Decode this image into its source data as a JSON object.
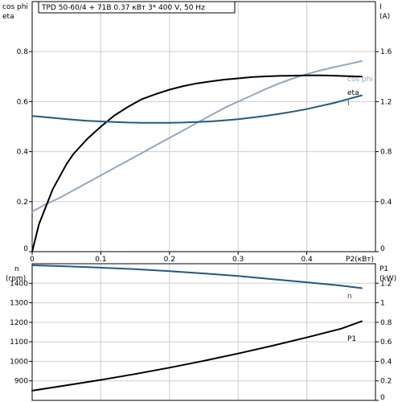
{
  "chart_data": {
    "title": "TPD 50-60/4 + 71B   0.37 кВт   3* 400 V, 50 Hz",
    "colors": {
      "cos_phi": "#8fa8c4",
      "eta": "#000000",
      "I": "#1c5a8c",
      "n": "#1c5a8c",
      "P1": "#000000",
      "grid": "#cfcfcf",
      "frame": "#000000"
    },
    "x": {
      "label": "P2(кВт)",
      "lim": [
        0,
        0.5
      ],
      "ticks": [
        0,
        0.1,
        0.2,
        0.3,
        0.4
      ],
      "tick_labels": [
        "0",
        "0.1",
        "0.2",
        "0.3",
        "0.4"
      ]
    },
    "panels": [
      {
        "id": "upper",
        "type": "line",
        "grid": true,
        "left_axis": {
          "label_line1": "cos phi",
          "label_line2": "eta",
          "lim": [
            0,
            1.0
          ],
          "ticks": [
            0,
            0.2,
            0.4,
            0.6,
            0.8
          ],
          "tick_labels": [
            "0",
            "0.2",
            "0.4",
            "0.6",
            "0.8"
          ]
        },
        "right_axis": {
          "label_line1": "I",
          "label_line2": "(A)",
          "lim": [
            0,
            2.0
          ],
          "ticks": [
            0,
            0.4,
            0.8,
            1.2,
            1.6
          ],
          "tick_labels": [
            "0",
            "0.4",
            "0.8",
            "1.2",
            "1.6"
          ]
        },
        "series": [
          {
            "key": "cos_phi",
            "name": "cos phi",
            "axis": "left",
            "x": [
              0,
              0.02,
              0.04,
              0.06,
              0.08,
              0.1,
              0.12,
              0.14,
              0.16,
              0.18,
              0.2,
              0.22,
              0.24,
              0.26,
              0.28,
              0.3,
              0.32,
              0.34,
              0.36,
              0.38,
              0.4,
              0.42,
              0.44,
              0.46,
              0.48
            ],
            "y": [
              0.16,
              0.19,
              0.215,
              0.245,
              0.275,
              0.305,
              0.335,
              0.365,
              0.395,
              0.425,
              0.455,
              0.485,
              0.515,
              0.545,
              0.575,
              0.6,
              0.625,
              0.65,
              0.673,
              0.693,
              0.71,
              0.725,
              0.738,
              0.75,
              0.762
            ]
          },
          {
            "key": "eta",
            "name": "eta",
            "axis": "left",
            "x": [
              0,
              0.01,
              0.02,
              0.03,
              0.04,
              0.05,
              0.06,
              0.08,
              0.1,
              0.12,
              0.14,
              0.16,
              0.18,
              0.2,
              0.22,
              0.24,
              0.26,
              0.28,
              0.3,
              0.32,
              0.34,
              0.36,
              0.38,
              0.4,
              0.42,
              0.44,
              0.46,
              0.48
            ],
            "y": [
              0,
              0.11,
              0.18,
              0.25,
              0.3,
              0.35,
              0.39,
              0.45,
              0.5,
              0.545,
              0.58,
              0.61,
              0.63,
              0.648,
              0.662,
              0.673,
              0.681,
              0.688,
              0.693,
              0.698,
              0.701,
              0.703,
              0.704,
              0.705,
              0.705,
              0.704,
              0.702,
              0.7
            ]
          },
          {
            "key": "I",
            "name": "I",
            "axis": "right",
            "x": [
              0,
              0.02,
              0.04,
              0.06,
              0.08,
              0.1,
              0.12,
              0.14,
              0.16,
              0.18,
              0.2,
              0.22,
              0.24,
              0.26,
              0.28,
              0.3,
              0.32,
              0.34,
              0.36,
              0.38,
              0.4,
              0.42,
              0.44,
              0.46,
              0.48
            ],
            "y": [
              1.085,
              1.075,
              1.065,
              1.055,
              1.047,
              1.042,
              1.037,
              1.033,
              1.031,
              1.03,
              1.031,
              1.033,
              1.037,
              1.042,
              1.05,
              1.06,
              1.072,
              1.086,
              1.102,
              1.12,
              1.14,
              1.165,
              1.19,
              1.22,
              1.25
            ]
          }
        ]
      },
      {
        "id": "lower",
        "type": "line",
        "grid": true,
        "left_axis": {
          "label_line1": "n",
          "label_line2": "(rpm)",
          "lim": [
            800,
            1500
          ],
          "ticks": [
            900,
            1000,
            1100,
            1200,
            1300,
            1400
          ],
          "tick_labels": [
            "900",
            "1000",
            "1100",
            "1200",
            "1300",
            "1400"
          ]
        },
        "right_axis": {
          "label_line1": "P1",
          "label_line2": "(kW)",
          "lim": [
            0,
            1.4
          ],
          "ticks": [
            0,
            0.2,
            0.4,
            0.6,
            0.8,
            1.0,
            1.2
          ],
          "tick_labels": [
            "0",
            "0.2",
            "0.4",
            "0.6",
            "0.8",
            "1",
            "1.2"
          ]
        },
        "series": [
          {
            "key": "n",
            "name": "n",
            "axis": "left",
            "x": [
              0,
              0.05,
              0.1,
              0.15,
              0.2,
              0.25,
              0.3,
              0.35,
              0.4,
              0.45,
              0.48
            ],
            "y": [
              1492,
              1487,
              1480,
              1472,
              1462,
              1450,
              1437,
              1421,
              1405,
              1388,
              1375
            ]
          },
          {
            "key": "P1",
            "name": "P1",
            "axis": "right",
            "x": [
              0,
              0.05,
              0.1,
              0.15,
              0.2,
              0.25,
              0.3,
              0.35,
              0.4,
              0.45,
              0.48
            ],
            "y": [
              0.1,
              0.155,
              0.21,
              0.27,
              0.335,
              0.405,
              0.48,
              0.56,
              0.645,
              0.735,
              0.81
            ]
          }
        ]
      }
    ]
  }
}
